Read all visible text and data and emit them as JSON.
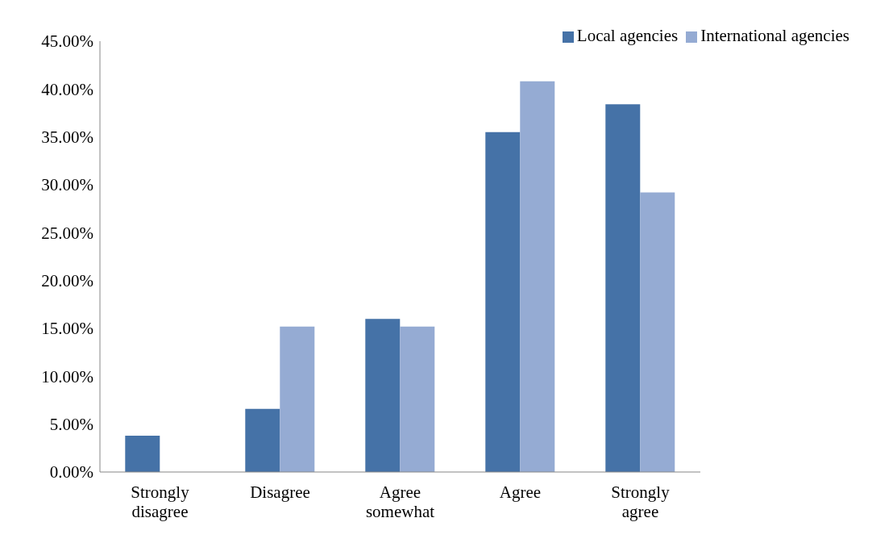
{
  "chart_data": {
    "type": "bar",
    "categories": [
      "Strongly disagree",
      "Disagree",
      "Agree somewhat",
      "Agree",
      "Strongly agree"
    ],
    "series": [
      {
        "name": "Local agencies",
        "color": "#4572a7",
        "values": [
          3.8,
          6.6,
          16.0,
          35.5,
          38.4
        ]
      },
      {
        "name": "International agencies",
        "color": "#95abd3",
        "values": [
          0,
          15.2,
          15.2,
          40.8,
          29.2
        ]
      }
    ],
    "ylim": [
      0,
      45
    ],
    "yticks": [
      {
        "value": 0,
        "label": "0.00%"
      },
      {
        "value": 5,
        "label": "5.00%"
      },
      {
        "value": 10,
        "label": "10.00%"
      },
      {
        "value": 15,
        "label": "15.00%"
      },
      {
        "value": 20,
        "label": "20.00%"
      },
      {
        "value": 25,
        "label": "25.00%"
      },
      {
        "value": 30,
        "label": "30.00%"
      },
      {
        "value": 35,
        "label": "35.00%"
      },
      {
        "value": 40,
        "label": "40.00%"
      },
      {
        "value": 45,
        "label": "45.00%"
      }
    ],
    "grid": false,
    "legend": "top right"
  }
}
